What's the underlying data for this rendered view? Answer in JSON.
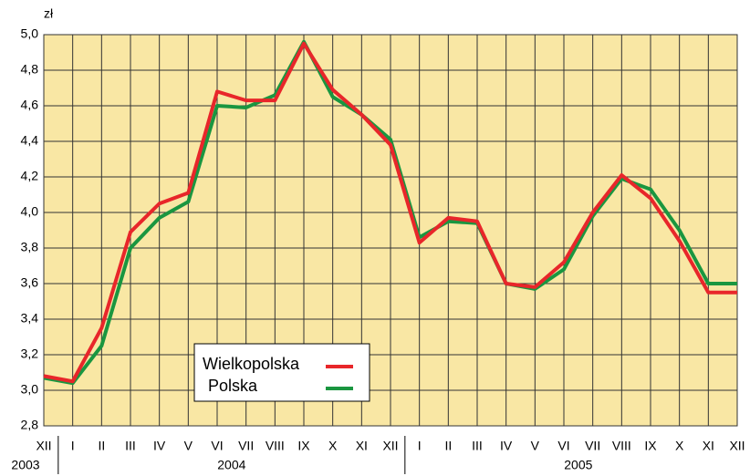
{
  "chart_data": {
    "type": "line",
    "unit_label": "zł",
    "categories": [
      "XII",
      "I",
      "II",
      "III",
      "IV",
      "V",
      "VI",
      "VII",
      "VIII",
      "IX",
      "X",
      "XI",
      "XII",
      "I",
      "II",
      "III",
      "IV",
      "V",
      "VI",
      "VII",
      "VIII",
      "IX",
      "X",
      "XI",
      "XII"
    ],
    "x_groups": [
      "2003",
      "2004",
      "2005"
    ],
    "series": [
      {
        "name": "Wielkopolska",
        "color": "#e8262a",
        "values": [
          3.08,
          3.05,
          3.35,
          3.89,
          4.05,
          4.11,
          4.68,
          4.63,
          4.63,
          4.95,
          4.69,
          4.55,
          4.38,
          3.83,
          3.97,
          3.95,
          3.6,
          3.58,
          3.72,
          4.0,
          4.21,
          4.08,
          3.84,
          3.55,
          3.55
        ]
      },
      {
        "name": "Polska",
        "color": "#1a9640",
        "values": [
          3.07,
          3.04,
          3.25,
          3.8,
          3.97,
          4.06,
          4.6,
          4.59,
          4.66,
          4.96,
          4.65,
          4.55,
          4.41,
          3.86,
          3.95,
          3.94,
          3.6,
          3.57,
          3.68,
          3.98,
          4.19,
          4.13,
          3.9,
          3.6,
          3.6
        ]
      }
    ],
    "ylim": [
      2.8,
      5.0
    ],
    "yticks": [
      {
        "value": 2.8,
        "label": "2,8"
      },
      {
        "value": 3.0,
        "label": "3,0"
      },
      {
        "value": 3.2,
        "label": "3,2"
      },
      {
        "value": 3.4,
        "label": "3,4"
      },
      {
        "value": 3.6,
        "label": "3,6"
      },
      {
        "value": 3.8,
        "label": "3,8"
      },
      {
        "value": 4.0,
        "label": "4,0"
      },
      {
        "value": 4.2,
        "label": "4,2"
      },
      {
        "value": 4.4,
        "label": "4,4"
      },
      {
        "value": 4.6,
        "label": "4,6"
      },
      {
        "value": 4.8,
        "label": "4,8"
      },
      {
        "value": 5.0,
        "label": "5,0"
      }
    ],
    "grid": true,
    "background": "#f9e7a4"
  }
}
